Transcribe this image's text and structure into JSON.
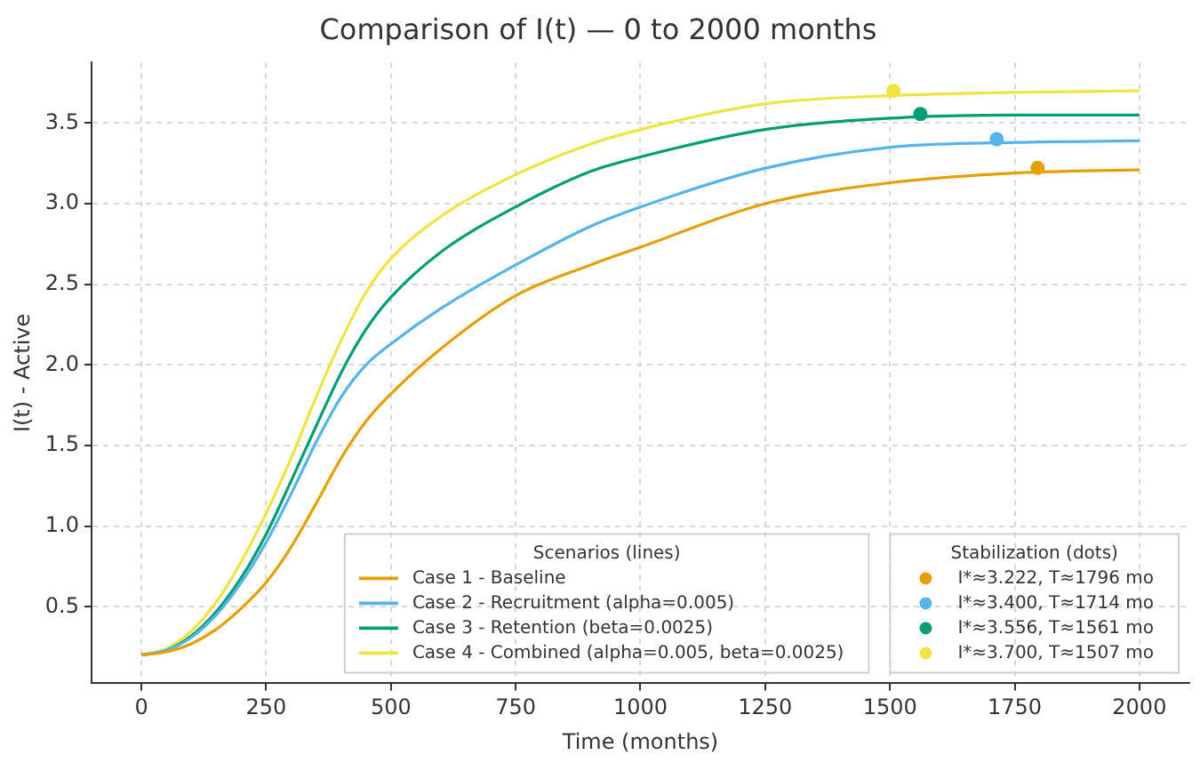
{
  "chart_data": {
    "type": "line",
    "title": "Comparison of I(t) — 0 to 2000 months",
    "xlabel": "Time (months)",
    "ylabel": "I(t) - Active",
    "legend_title": [
      "Scenarios (lines)",
      "Stabilization (dots)"
    ],
    "x": [
      0,
      50,
      100,
      150,
      200,
      250,
      300,
      350,
      400,
      450,
      500,
      600,
      750,
      900,
      1000,
      1250,
      1500,
      1750,
      2000
    ],
    "series": [
      {
        "name": "Case 1 - Baseline",
        "color": "#e69f00",
        "values": [
          0.2,
          0.22,
          0.27,
          0.36,
          0.49,
          0.65,
          0.87,
          1.14,
          1.42,
          1.65,
          1.82,
          2.1,
          2.43,
          2.62,
          2.73,
          3.0,
          3.13,
          3.19,
          3.21
        ]
      },
      {
        "name": "Case 2 - Recruitment (alpha=0.005)",
        "color": "#56b4e9",
        "values": [
          0.2,
          0.23,
          0.31,
          0.45,
          0.65,
          0.9,
          1.2,
          1.52,
          1.8,
          2.0,
          2.13,
          2.35,
          2.62,
          2.86,
          2.98,
          3.22,
          3.35,
          3.38,
          3.39
        ]
      },
      {
        "name": "Case 3 - Retention (beta=0.0025)",
        "color": "#009e73",
        "values": [
          0.2,
          0.23,
          0.32,
          0.47,
          0.68,
          0.95,
          1.28,
          1.62,
          1.95,
          2.22,
          2.42,
          2.7,
          2.98,
          3.2,
          3.29,
          3.46,
          3.53,
          3.55,
          3.55
        ]
      },
      {
        "name": "Case 4 - Combined (alpha=0.005, beta=0.0025)",
        "color": "#f0e442",
        "values": [
          0.2,
          0.24,
          0.35,
          0.53,
          0.78,
          1.08,
          1.42,
          1.8,
          2.15,
          2.45,
          2.66,
          2.92,
          3.18,
          3.37,
          3.46,
          3.62,
          3.67,
          3.69,
          3.7
        ]
      },
      {
        "type": "scatter",
        "name": "I*≈3.222, T≈1796 mo",
        "color": "#e69f00",
        "x": [
          1796
        ],
        "values": [
          3.222
        ]
      },
      {
        "type": "scatter",
        "name": "I*≈3.400, T≈1714 mo",
        "color": "#56b4e9",
        "x": [
          1714
        ],
        "values": [
          3.4
        ]
      },
      {
        "type": "scatter",
        "name": "I*≈3.556, T≈1561 mo",
        "color": "#009e73",
        "x": [
          1561
        ],
        "values": [
          3.556
        ]
      },
      {
        "type": "scatter",
        "name": "I*≈3.700, T≈1507 mo",
        "color": "#f0e442",
        "x": [
          1507
        ],
        "values": [
          3.7
        ]
      }
    ],
    "xlim": [
      -100,
      2100
    ],
    "xticks": [
      0,
      250,
      500,
      750,
      1000,
      1250,
      1500,
      1750,
      2000
    ],
    "ylim": [
      0.025,
      3.875
    ],
    "yticks": [
      0.5,
      {
        "value": 1,
        "label": "1.0"
      },
      1.5,
      {
        "value": 2,
        "label": "2.0"
      },
      2.5,
      {
        "value": 3,
        "label": "3.0"
      },
      3.5
    ],
    "grid": true,
    "legend": "bottom right",
    "line_style": "solid"
  }
}
